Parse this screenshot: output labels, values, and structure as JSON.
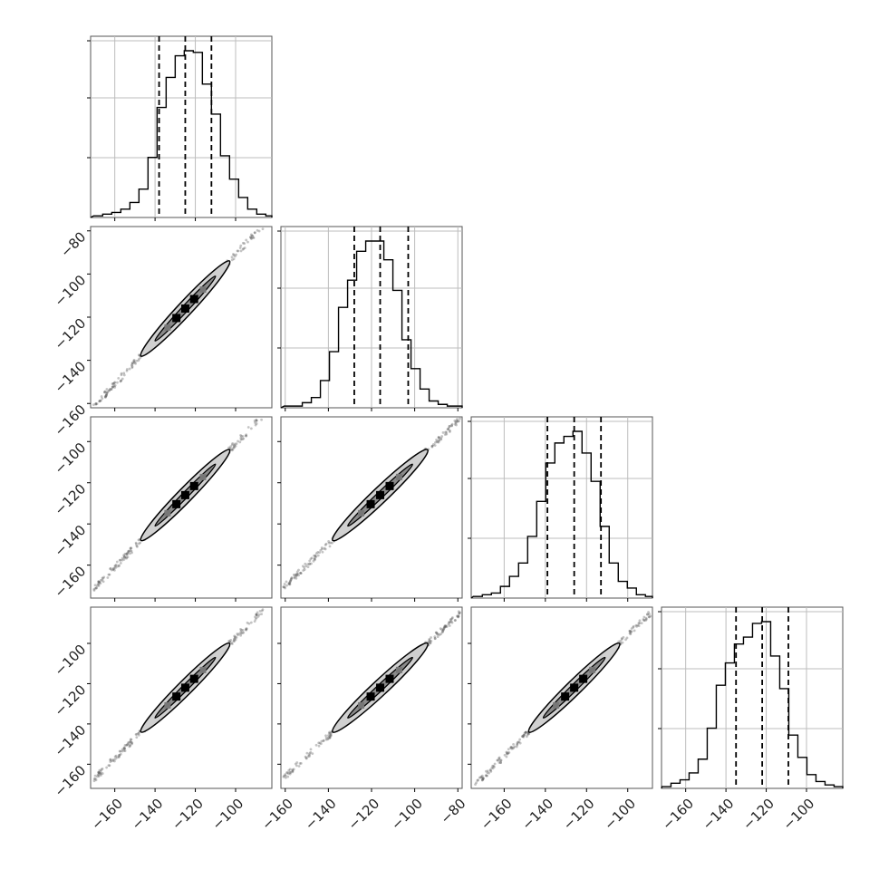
{
  "chart_data": {
    "type": "corner",
    "title": "",
    "n_params": 4,
    "grid": true,
    "quantile_line_style": "dashed",
    "params": [
      {
        "range": [
          -172,
          -82
        ],
        "ticks": [
          -160,
          -140,
          -120,
          -100
        ],
        "quantiles": [
          -138,
          -125,
          -112
        ],
        "hist": {
          "bin_start": -170.5,
          "bin_width": 4.5,
          "counts": [
            1,
            2,
            3,
            5,
            9,
            17,
            36,
            66,
            84,
            97,
            100,
            99,
            80,
            62,
            37,
            23,
            12,
            5,
            2,
            1
          ]
        }
      },
      {
        "range": [
          -162,
          -78
        ],
        "ticks": [
          -160,
          -140,
          -120,
          -100,
          -80
        ],
        "quantiles": [
          -128,
          -116,
          -103
        ],
        "hist": {
          "bin_start": -160.5,
          "bin_width": 4.2,
          "counts": [
            1,
            1,
            3,
            6,
            16,
            33,
            59,
            75,
            92,
            98,
            98,
            87,
            69,
            40,
            23,
            11,
            4,
            2,
            1,
            1
          ]
        }
      },
      {
        "range": [
          -176,
          -88
        ],
        "ticks": [
          -160,
          -140,
          -120,
          -100
        ],
        "quantiles": [
          -139,
          -126,
          -113
        ],
        "hist": {
          "bin_start": -175.0,
          "bin_width": 4.4,
          "counts": [
            1,
            2,
            3,
            7,
            13,
            21,
            37,
            58,
            81,
            93,
            97,
            100,
            87,
            70,
            43,
            21,
            10,
            6,
            2,
            1
          ]
        }
      },
      {
        "range": [
          -172,
          -82
        ],
        "ticks": [
          -160,
          -140,
          -120,
          -100
        ],
        "quantiles": [
          -135,
          -122,
          -109
        ],
        "hist": {
          "bin_start": -171.8,
          "bin_width": 4.5,
          "counts": [
            1,
            3,
            5,
            9,
            17,
            35,
            60,
            73,
            84,
            88,
            96,
            97,
            77,
            58,
            31,
            18,
            8,
            4,
            2,
            1
          ]
        }
      }
    ],
    "pairs": [
      {
        "x": 0,
        "y": 1,
        "x_intercept": -141,
        "slope": 0.9,
        "inner_halfwidth": 3.5,
        "outer_halfwidth": 6.5
      },
      {
        "x": 0,
        "y": 2,
        "x_intercept": -133,
        "slope": 0.9,
        "inner_halfwidth": 3.2,
        "outer_halfwidth": 6.5
      },
      {
        "x": 1,
        "y": 2,
        "x_intercept": -127,
        "slope": 0.92,
        "inner_halfwidth": 3.2,
        "outer_halfwidth": 6.5
      },
      {
        "x": 0,
        "y": 3,
        "x_intercept": -134,
        "slope": 0.9,
        "inner_halfwidth": 3.2,
        "outer_halfwidth": 6.5
      },
      {
        "x": 1,
        "y": 3,
        "x_intercept": -129,
        "slope": 0.92,
        "inner_halfwidth": 3.2,
        "outer_halfwidth": 6.5
      },
      {
        "x": 2,
        "y": 3,
        "x_intercept": -137,
        "slope": 0.9,
        "inner_halfwidth": 3.5,
        "outer_halfwidth": 6.5
      }
    ]
  }
}
